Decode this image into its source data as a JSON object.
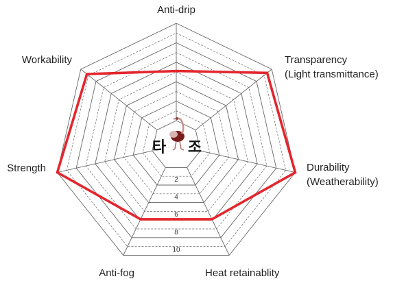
{
  "chart_data": {
    "type": "radar",
    "axes": [
      "Anti-drip",
      "Transparency (Light transmittance)",
      "Durability (Weatherability)",
      "Heat retainablity",
      "Anti-fog",
      "Strength",
      "Workability"
    ],
    "axis_label_lines": [
      [
        "Anti-drip"
      ],
      [
        "Transparency",
        "(Light transmittance)"
      ],
      [
        "Durability",
        "(Weatherability)"
      ],
      [
        "Heat retainablity"
      ],
      [
        "Anti-fog"
      ],
      [
        "Strength"
      ],
      [
        "Workability"
      ]
    ],
    "values": [
      5.1,
      9.4,
      10,
      5.9,
      5.9,
      10,
      9.2
    ],
    "rlim": [
      0,
      10
    ],
    "ticks": [
      "2",
      "4",
      "6",
      "8",
      "10"
    ],
    "grid": true,
    "legend": "none",
    "series_color": "#e3262e",
    "grid_color": "#666666"
  },
  "logo": {
    "text_left": "타",
    "text_right": "조",
    "icon": "ostrich-icon"
  }
}
